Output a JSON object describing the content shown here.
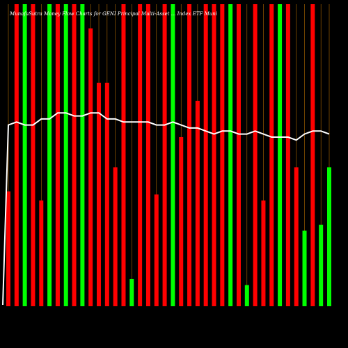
{
  "chart_data": {
    "type": "bar",
    "title": "MunafaSutra Money Flow Charts for GENI Principal Multi-Asset ... Index ETF Muni",
    "x": [
      "",
      "",
      "",
      "",
      "",
      "",
      "",
      "",
      "",
      "",
      "",
      "",
      "",
      "",
      "",
      "",
      "",
      "",
      "",
      "",
      "",
      "",
      "",
      "",
      "",
      "",
      "",
      "",
      "",
      "",
      "",
      "",
      "",
      "",
      "",
      "",
      "",
      "",
      "",
      ""
    ],
    "values": [
      38,
      100,
      100,
      100,
      35,
      100,
      100,
      100,
      100,
      100,
      92,
      74,
      74,
      46,
      100,
      9,
      100,
      100,
      37,
      100,
      100,
      56,
      100,
      68,
      100,
      100,
      100,
      100,
      100,
      7,
      100,
      35,
      100,
      100,
      100,
      46,
      25,
      100,
      27,
      46
    ],
    "bar_colors": [
      "#ff0000",
      "#ff0000",
      "#00ff00",
      "#ff0000",
      "#ff0000",
      "#00ff00",
      "#ff0000",
      "#00ff00",
      "#ff0000",
      "#00ff00",
      "#ff0000",
      "#ff0000",
      "#ff0000",
      "#ff0000",
      "#ff0000",
      "#00ff00",
      "#ff0000",
      "#ff0000",
      "#ff0000",
      "#ff0000",
      "#00ff00",
      "#ff0000",
      "#ff0000",
      "#ff0000",
      "#ff0000",
      "#ff0000",
      "#ff0000",
      "#00ff00",
      "#ff0000",
      "#00ff00",
      "#ff0000",
      "#ff0000",
      "#ff0000",
      "#00ff00",
      "#ff0000",
      "#ff0000",
      "#00ff00",
      "#ff0000",
      "#00ff00",
      "#00ff00"
    ],
    "line_values": [
      60,
      61,
      60,
      60,
      62,
      62,
      64,
      64,
      63,
      63,
      64,
      64,
      62,
      62,
      61,
      61,
      61,
      61,
      60,
      60,
      61,
      60,
      59,
      59,
      58,
      57,
      58,
      58,
      57,
      57,
      58,
      57,
      56,
      56,
      56,
      55,
      57,
      58,
      58,
      57
    ],
    "ylim": [
      0,
      100
    ],
    "colors": {
      "background": "#000000",
      "up": "#00ff00",
      "down": "#ff0000",
      "line": "#ffffff",
      "guide": "#b36b00"
    }
  }
}
